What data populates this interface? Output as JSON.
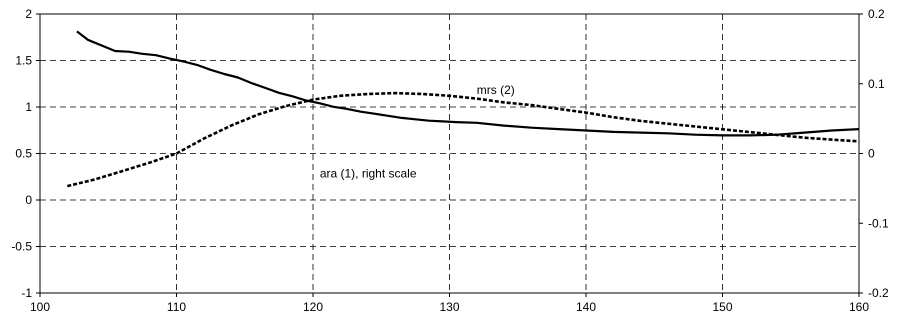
{
  "chart_data": {
    "type": "line",
    "title": "",
    "xlabel": "",
    "ylabel": "",
    "xlim": [
      100,
      160
    ],
    "ylim": [
      -1,
      2
    ],
    "y2lim": [
      -0.2,
      0.2
    ],
    "grid": true,
    "x_ticks": [
      "100",
      "110",
      "120",
      "130",
      "140",
      "150",
      "160"
    ],
    "y_ticks_left": [
      "-1",
      "-0.5",
      "0",
      "0.5",
      "1",
      "1.5",
      "2"
    ],
    "y_ticks_right": [
      "-0.2",
      "-0.1",
      "0",
      "0.1",
      "0.2"
    ],
    "series": [
      {
        "name": "ara (1), right scale",
        "axis": "right",
        "style": "solid",
        "color": "#000000",
        "x": [
          102.7,
          103.5,
          104.5,
          105.5,
          106.5,
          107.5,
          108.5,
          109.5,
          110.5,
          111.5,
          112.5,
          113.5,
          114.5,
          115.5,
          116.5,
          117.5,
          118.5,
          119.5,
          120.5,
          121.5,
          122.5,
          123.5,
          124.5,
          125.5,
          126.5,
          127.5,
          128.5,
          129.5,
          130.5,
          132,
          134,
          136,
          138,
          140,
          142,
          144,
          146,
          148,
          150,
          152,
          154,
          156,
          158,
          160
        ],
        "values": [
          0.175,
          0.163,
          0.155,
          0.147,
          0.146,
          0.143,
          0.141,
          0.136,
          0.132,
          0.127,
          0.12,
          0.114,
          0.109,
          0.101,
          0.094,
          0.087,
          0.082,
          0.076,
          0.072,
          0.067,
          0.064,
          0.06,
          0.057,
          0.054,
          0.051,
          0.049,
          0.047,
          0.046,
          0.045,
          0.044,
          0.04,
          0.037,
          0.035,
          0.033,
          0.031,
          0.03,
          0.029,
          0.027,
          0.026,
          0.026,
          0.027,
          0.03,
          0.033,
          0.035
        ]
      },
      {
        "name": "mrs (2)",
        "axis": "left",
        "style": "dashed",
        "color": "#000000",
        "x": [
          102,
          104,
          106,
          108,
          110,
          112,
          114,
          116,
          118,
          120,
          122,
          124,
          126,
          128,
          130,
          132,
          134,
          136,
          138,
          140,
          142,
          144,
          146,
          148,
          150,
          152,
          154,
          156,
          158,
          160
        ],
        "values": [
          0.15,
          0.22,
          0.31,
          0.4,
          0.5,
          0.66,
          0.8,
          0.92,
          1.01,
          1.08,
          1.12,
          1.14,
          1.15,
          1.14,
          1.12,
          1.09,
          1.05,
          1.02,
          0.98,
          0.94,
          0.89,
          0.85,
          0.82,
          0.79,
          0.76,
          0.73,
          0.7,
          0.67,
          0.65,
          0.63
        ]
      }
    ],
    "annotations": [
      {
        "text": "mrs (2)",
        "x": 132,
        "y": 1.14,
        "axis": "left"
      },
      {
        "text": "ara (1), right scale",
        "x": 120.5,
        "y": 0.24,
        "axis": "left"
      }
    ]
  }
}
